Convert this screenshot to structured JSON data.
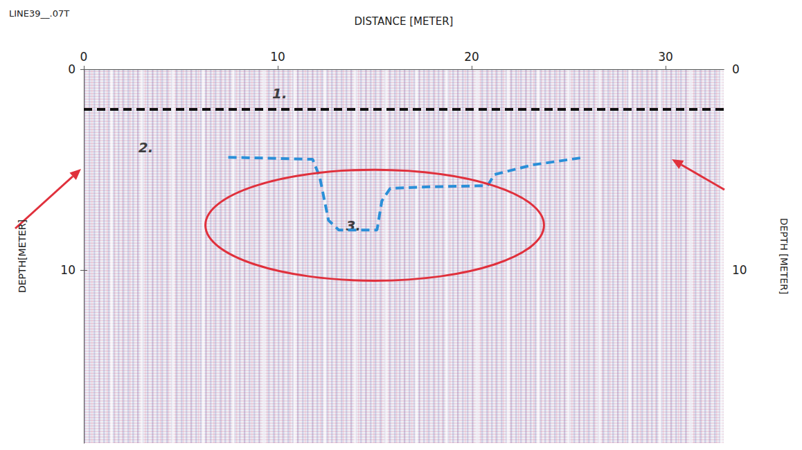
{
  "chart_data": {
    "type": "radargram",
    "title": "LINE39__.07T",
    "xlabel": "DISTANCE [METER]",
    "ylabel": "DEPTH[METER]",
    "y2label": "DEPTH [METER]",
    "xlim": [
      0,
      33
    ],
    "xticks": [
      0,
      10,
      20,
      30
    ],
    "ylim": [
      0,
      18.6
    ],
    "yticks": [
      0,
      10
    ],
    "y2lim": [
      0,
      18.6
    ],
    "y2ticks": [
      0,
      10
    ],
    "grid": false,
    "lines": [
      {
        "color": "#111111",
        "line_style": "dashed",
        "x": [
          0,
          33
        ],
        "y": [
          2.0,
          2.0
        ]
      },
      {
        "color": "#2a8fd8",
        "line_style": "dashed",
        "x": [
          7.45,
          11.8,
          12.16,
          12.62,
          13.15,
          15.12,
          15.37,
          15.8,
          17.43,
          20.82,
          21.18,
          23.14,
          25.63
        ],
        "y": [
          4.38,
          4.48,
          5.34,
          7.52,
          8.0,
          8.0,
          6.55,
          5.93,
          5.86,
          5.79,
          5.24,
          4.76,
          4.41
        ]
      }
    ],
    "annotations": [
      {
        "text": "1.",
        "x": 10.1,
        "y": 1.2
      },
      {
        "text": "2.",
        "x": 3.2,
        "y": 3.9
      },
      {
        "text": "3.",
        "x": 13.9,
        "y": 7.8
      }
    ],
    "ellipse": {
      "color": "#e0303c",
      "center": [
        15.0,
        7.76
      ],
      "radii": [
        8.73,
        2.76
      ]
    }
  }
}
